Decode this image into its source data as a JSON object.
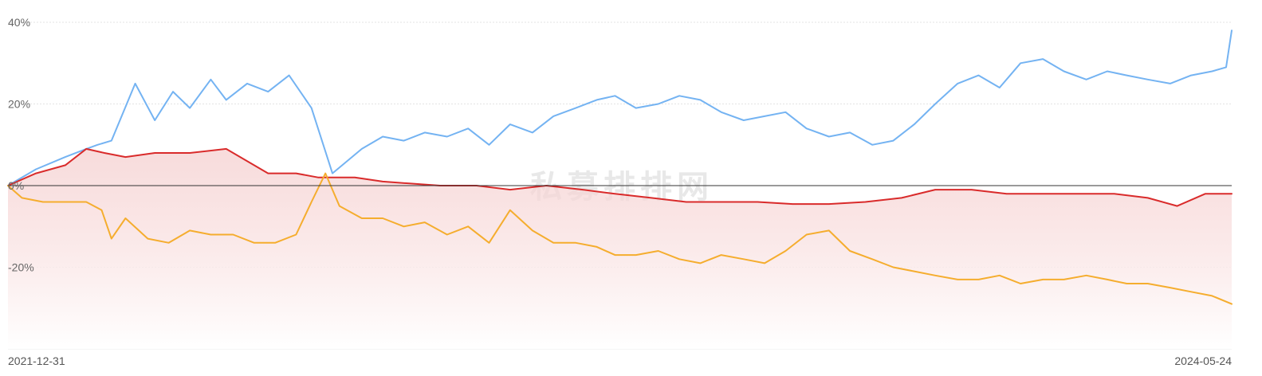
{
  "watermark": "私募排排网",
  "chart_data": {
    "type": "line",
    "x_start": "2021-12-31",
    "x_end": "2024-05-24",
    "x_tick_labels": [
      "2021-12-31",
      "2024-05-24"
    ],
    "y_tick_labels": [
      "40%",
      "20%",
      "0%",
      "-20%"
    ],
    "y_ticks": [
      40,
      20,
      0,
      -20
    ],
    "ylim": [
      -40,
      41
    ],
    "grid": true,
    "zero_line": true,
    "series": [
      {
        "color": "#74b3f2",
        "fill": false,
        "x": [
          "2021-12-31",
          "2022-01-20",
          "2022-02-10",
          "2022-02-25",
          "2022-03-05",
          "2022-03-15",
          "2022-04-01",
          "2022-04-15",
          "2022-04-28",
          "2022-05-10",
          "2022-05-25",
          "2022-06-05",
          "2022-06-20",
          "2022-07-05",
          "2022-07-20",
          "2022-08-05",
          "2022-08-20",
          "2022-09-10",
          "2022-09-25",
          "2022-10-10",
          "2022-10-25",
          "2022-11-10",
          "2022-11-25",
          "2022-12-10",
          "2022-12-25",
          "2023-01-10",
          "2023-01-25",
          "2023-02-10",
          "2023-02-25",
          "2023-03-10",
          "2023-03-25",
          "2023-04-10",
          "2023-04-25",
          "2023-05-10",
          "2023-05-25",
          "2023-06-10",
          "2023-06-25",
          "2023-07-10",
          "2023-07-25",
          "2023-08-10",
          "2023-08-25",
          "2023-09-10",
          "2023-09-25",
          "2023-10-10",
          "2023-10-25",
          "2023-11-10",
          "2023-11-25",
          "2023-12-10",
          "2023-12-25",
          "2024-01-10",
          "2024-01-25",
          "2024-02-10",
          "2024-02-25",
          "2024-03-10",
          "2024-03-25",
          "2024-04-10",
          "2024-04-25",
          "2024-05-10",
          "2024-05-20",
          "2024-05-24"
        ],
        "values": [
          0,
          4,
          7,
          9,
          10,
          11,
          25,
          16,
          23,
          19,
          26,
          21,
          25,
          23,
          27,
          19,
          3,
          9,
          12,
          11,
          13,
          12,
          14,
          10,
          15,
          13,
          17,
          19,
          21,
          22,
          19,
          20,
          22,
          21,
          18,
          16,
          17,
          18,
          14,
          12,
          13,
          10,
          11,
          15,
          20,
          25,
          27,
          24,
          30,
          31,
          28,
          26,
          28,
          27,
          26,
          25,
          27,
          28,
          29,
          38
        ]
      },
      {
        "color": "#d92b2b",
        "fill": true,
        "x": [
          "2021-12-31",
          "2022-01-20",
          "2022-02-10",
          "2022-02-25",
          "2022-03-10",
          "2022-03-25",
          "2022-04-15",
          "2022-05-10",
          "2022-06-05",
          "2022-07-05",
          "2022-07-25",
          "2022-08-10",
          "2022-09-05",
          "2022-09-25",
          "2022-10-15",
          "2022-11-05",
          "2022-12-01",
          "2022-12-25",
          "2023-01-20",
          "2023-02-15",
          "2023-03-10",
          "2023-04-05",
          "2023-04-30",
          "2023-05-25",
          "2023-06-20",
          "2023-07-15",
          "2023-08-10",
          "2023-09-05",
          "2023-10-01",
          "2023-10-25",
          "2023-11-20",
          "2023-12-15",
          "2024-01-10",
          "2024-02-05",
          "2024-03-01",
          "2024-03-25",
          "2024-04-15",
          "2024-05-05",
          "2024-05-24"
        ],
        "values": [
          0,
          3,
          5,
          9,
          8,
          7,
          8,
          8,
          9,
          3,
          3,
          2,
          2,
          1,
          0.5,
          0,
          0,
          -1,
          0,
          -1,
          -2,
          -3,
          -4,
          -4,
          -4,
          -4.5,
          -4.5,
          -4,
          -3,
          -1,
          -1,
          -2,
          -2,
          -2,
          -2,
          -3,
          -5,
          -2,
          -2
        ]
      },
      {
        "color": "#f5ad2e",
        "fill": false,
        "x": [
          "2021-12-31",
          "2022-01-10",
          "2022-01-25",
          "2022-02-10",
          "2022-02-25",
          "2022-03-08",
          "2022-03-15",
          "2022-03-25",
          "2022-04-10",
          "2022-04-25",
          "2022-05-10",
          "2022-05-25",
          "2022-06-10",
          "2022-06-25",
          "2022-07-10",
          "2022-07-25",
          "2022-08-05",
          "2022-08-15",
          "2022-08-25",
          "2022-09-10",
          "2022-09-25",
          "2022-10-10",
          "2022-10-25",
          "2022-11-10",
          "2022-11-25",
          "2022-12-10",
          "2022-12-25",
          "2023-01-10",
          "2023-01-25",
          "2023-02-10",
          "2023-02-25",
          "2023-03-10",
          "2023-03-25",
          "2023-04-10",
          "2023-04-25",
          "2023-05-10",
          "2023-05-25",
          "2023-06-10",
          "2023-06-25",
          "2023-07-10",
          "2023-07-25",
          "2023-08-10",
          "2023-08-25",
          "2023-09-10",
          "2023-09-25",
          "2023-10-10",
          "2023-10-25",
          "2023-11-10",
          "2023-11-25",
          "2023-12-10",
          "2023-12-25",
          "2024-01-10",
          "2024-01-25",
          "2024-02-10",
          "2024-02-25",
          "2024-03-10",
          "2024-03-25",
          "2024-04-10",
          "2024-04-25",
          "2024-05-10",
          "2024-05-24"
        ],
        "values": [
          0,
          -3,
          -4,
          -4,
          -4,
          -6,
          -13,
          -8,
          -13,
          -14,
          -11,
          -12,
          -12,
          -14,
          -14,
          -12,
          -4,
          3,
          -5,
          -8,
          -8,
          -10,
          -9,
          -12,
          -10,
          -14,
          -6,
          -11,
          -14,
          -14,
          -15,
          -17,
          -17,
          -16,
          -18,
          -19,
          -17,
          -18,
          -19,
          -16,
          -12,
          -11,
          -16,
          -18,
          -20,
          -21,
          -22,
          -23,
          -23,
          -22,
          -24,
          -23,
          -23,
          -22,
          -23,
          -24,
          -24,
          -25,
          -26,
          -27,
          -29
        ]
      }
    ]
  }
}
